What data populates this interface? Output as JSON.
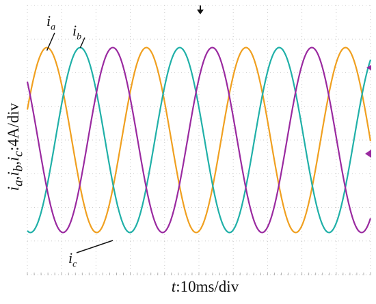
{
  "chart_data": {
    "type": "line",
    "xlabel_var": "t",
    "xlabel_rest": ":10ms/div",
    "ylabel_vars": [
      "i",
      "a",
      "i",
      "b",
      "i",
      "c"
    ],
    "ylabel_rest": ":4A/div",
    "grid": true,
    "x_divisions": 10,
    "y_divisions": 8,
    "x_range_ms": [
      0,
      100
    ],
    "amplitude_div": 2.75,
    "colors": {
      "i_a": "#f0a020",
      "i_b": "#20b0a8",
      "i_c": "#9a2aa0"
    },
    "series": [
      {
        "name": "i",
        "sub": "a",
        "key": "i_a",
        "period_ms": 29,
        "peak_at_ms": 5.7
      },
      {
        "name": "i",
        "sub": "b",
        "key": "i_b",
        "period_ms": 29,
        "peak_at_ms": 15.4
      },
      {
        "name": "i",
        "sub": "c",
        "key": "i_c",
        "period_ms": 29,
        "peak_at_ms": 24.9
      }
    ]
  }
}
